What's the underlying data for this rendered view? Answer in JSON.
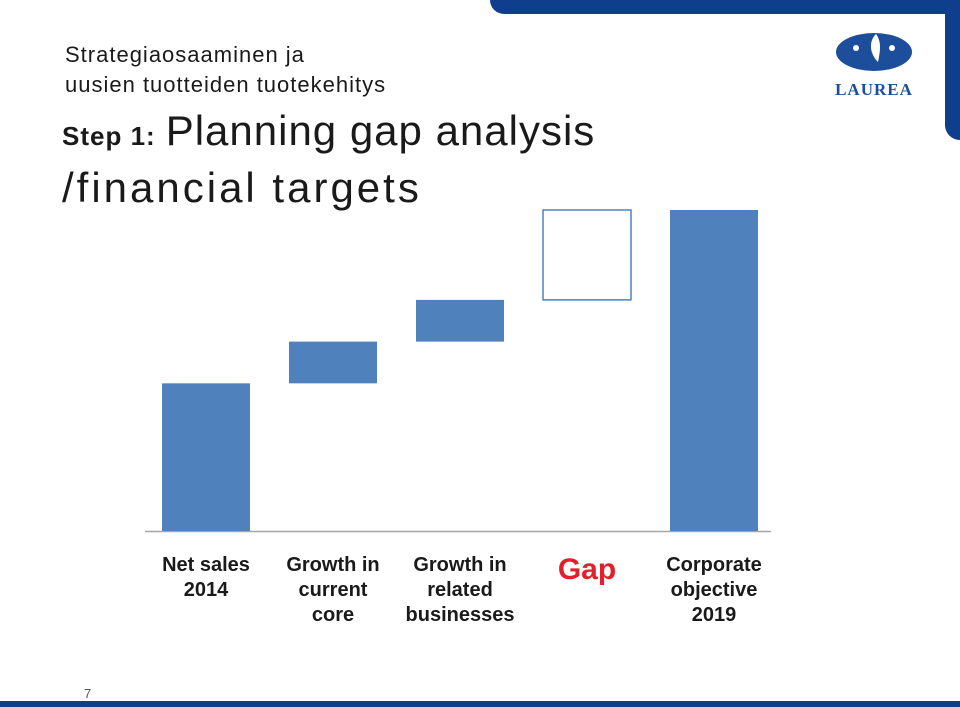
{
  "header": {
    "line1": "Strategiaosaaminen ja",
    "line2": "uusien tuotteiden tuotekehitys"
  },
  "title": {
    "step": "Step 1:",
    "main": "Planning gap analysis",
    "line2": "/financial targets"
  },
  "logo": {
    "text": "LAUREA",
    "brand_color": "#1c4e9c"
  },
  "page_number": "7",
  "colors": {
    "bar": "#4f81bd",
    "gap_outline": "#4f81bd",
    "gap_label": "#e3202a",
    "band": "#0f3f8c"
  },
  "chart_data": {
    "type": "waterfall",
    "title": "",
    "xlabel": "",
    "ylabel": "",
    "grid": false,
    "legend": "none",
    "ylim": [
      0,
      100
    ],
    "categories": [
      {
        "label": [
          "Net sales",
          "2014"
        ],
        "start": 0,
        "end": 46,
        "kind": "total"
      },
      {
        "label": [
          "Growth in",
          "current",
          "core"
        ],
        "start": 46,
        "end": 59,
        "kind": "increase"
      },
      {
        "label": [
          "Growth in",
          "related",
          "businesses"
        ],
        "start": 59,
        "end": 72,
        "kind": "increase"
      },
      {
        "label": [
          "Gap"
        ],
        "start": 72,
        "end": 100,
        "kind": "gap"
      },
      {
        "label": [
          "Corporate",
          "objective",
          "2019"
        ],
        "start": 0,
        "end": 100,
        "kind": "total"
      }
    ]
  }
}
